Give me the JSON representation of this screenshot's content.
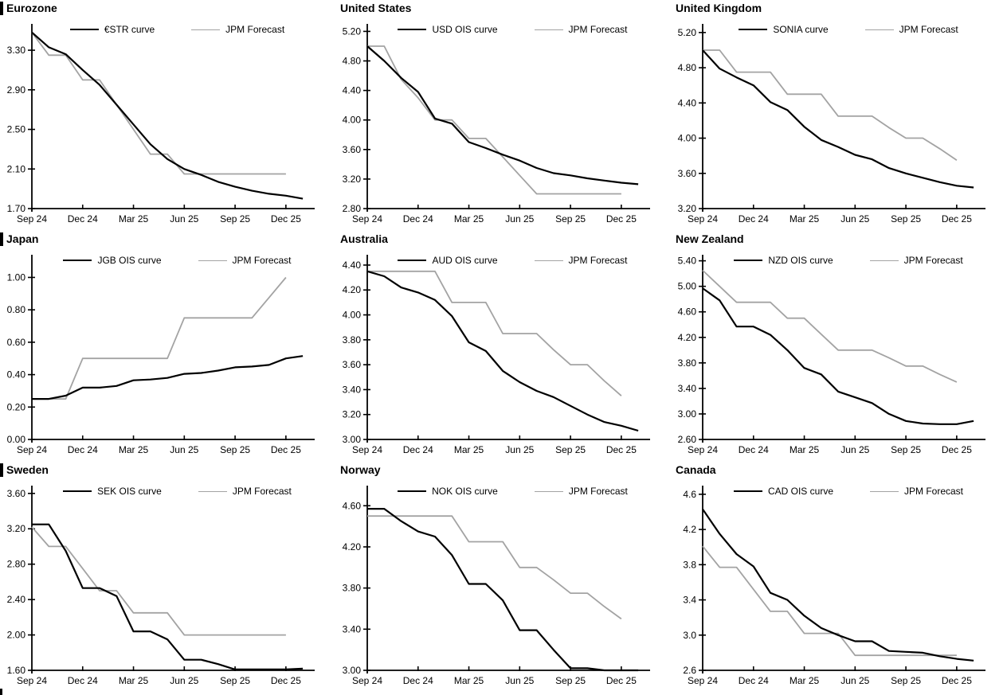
{
  "page": {
    "background": "#ffffff"
  },
  "chart_meta": {
    "x_tick_labels": [
      "Sep 24",
      "Dec 24",
      "Mar 25",
      "Jun 25",
      "Sep 25",
      "Dec 25"
    ],
    "x_tick_indices": [
      0,
      3,
      6,
      9,
      12,
      15
    ],
    "x_axis_max_index": 16.7,
    "x_interval": "monthly from Sep 24; curve series extend one extra month past Dec 25",
    "curve_color": "#000000",
    "forecast_color": "#a3a3a3",
    "legend_position": "top-center inside plot"
  },
  "chart_data": [
    {
      "type": "line",
      "title": "Eurozone",
      "section_bar": true,
      "grid": false,
      "y_min": 1.7,
      "y_axis_max": 3.55,
      "y_ticks": [
        1.7,
        2.1,
        2.5,
        2.9,
        3.3
      ],
      "y_tick_labels": [
        "1.70",
        "2.10",
        "2.50",
        "2.90",
        "3.30"
      ],
      "series": [
        {
          "name": "€STR curve",
          "color": "#000000",
          "values": [
            3.48,
            3.33,
            3.26,
            3.1,
            2.95,
            2.75,
            2.55,
            2.35,
            2.2,
            2.1,
            2.04,
            1.97,
            1.92,
            1.88,
            1.85,
            1.83,
            1.8
          ]
        },
        {
          "name": "JPM Forecast",
          "color": "#a3a3a3",
          "values": [
            3.48,
            3.25,
            3.25,
            3.0,
            3.0,
            2.75,
            2.5,
            2.25,
            2.25,
            2.05,
            2.05,
            2.05,
            2.05,
            2.05,
            2.05,
            2.05
          ]
        }
      ]
    },
    {
      "type": "line",
      "title": "United States",
      "section_bar": false,
      "grid": false,
      "y_min": 2.8,
      "y_axis_max": 5.28,
      "y_ticks": [
        2.8,
        3.2,
        3.6,
        4.0,
        4.4,
        4.8,
        5.2
      ],
      "y_tick_labels": [
        "2.80",
        "3.20",
        "3.60",
        "4.00",
        "4.40",
        "4.80",
        "5.20"
      ],
      "series": [
        {
          "name": "USD OIS curve",
          "color": "#000000",
          "values": [
            5.0,
            4.8,
            4.57,
            4.38,
            4.02,
            3.95,
            3.7,
            3.62,
            3.53,
            3.45,
            3.35,
            3.28,
            3.25,
            3.21,
            3.18,
            3.15,
            3.13
          ]
        },
        {
          "name": "JPM Forecast",
          "color": "#a3a3a3",
          "values": [
            5.0,
            5.0,
            4.55,
            4.3,
            4.0,
            4.0,
            3.75,
            3.75,
            3.5,
            3.25,
            3.0,
            3.0,
            3.0,
            3.0,
            3.0,
            3.0
          ]
        }
      ]
    },
    {
      "type": "line",
      "title": "United Kingdom",
      "section_bar": false,
      "grid": false,
      "y_min": 3.2,
      "y_axis_max": 5.28,
      "y_ticks": [
        3.2,
        3.6,
        4.0,
        4.4,
        4.8,
        5.2
      ],
      "y_tick_labels": [
        "3.20",
        "3.60",
        "4.00",
        "4.40",
        "4.80",
        "5.20"
      ],
      "series": [
        {
          "name": "SONIA curve",
          "color": "#000000",
          "values": [
            5.0,
            4.79,
            4.69,
            4.6,
            4.41,
            4.32,
            4.13,
            3.98,
            3.9,
            3.81,
            3.76,
            3.66,
            3.6,
            3.55,
            3.5,
            3.46,
            3.44
          ]
        },
        {
          "name": "JPM Forecast",
          "color": "#a3a3a3",
          "values": [
            5.0,
            5.0,
            4.75,
            4.75,
            4.75,
            4.5,
            4.5,
            4.5,
            4.25,
            4.25,
            4.25,
            4.12,
            4.0,
            4.0,
            3.88,
            3.75
          ]
        }
      ]
    },
    {
      "type": "line",
      "title": "Japan",
      "section_bar": true,
      "grid": false,
      "y_min": 0.0,
      "y_axis_max": 1.13,
      "y_ticks": [
        0.0,
        0.2,
        0.4,
        0.6,
        0.8,
        1.0
      ],
      "y_tick_labels": [
        "0.00",
        "0.20",
        "0.40",
        "0.60",
        "0.80",
        "1.00"
      ],
      "series": [
        {
          "name": "JGB OIS curve",
          "color": "#000000",
          "values": [
            0.25,
            0.25,
            0.27,
            0.32,
            0.32,
            0.33,
            0.365,
            0.37,
            0.38,
            0.405,
            0.41,
            0.425,
            0.445,
            0.45,
            0.46,
            0.5,
            0.515
          ]
        },
        {
          "name": "JPM Forecast",
          "color": "#a3a3a3",
          "values": [
            0.25,
            0.25,
            0.25,
            0.5,
            0.5,
            0.5,
            0.5,
            0.5,
            0.5,
            0.75,
            0.75,
            0.75,
            0.75,
            0.75,
            0.875,
            1.0
          ]
        }
      ]
    },
    {
      "type": "line",
      "title": "Australia",
      "section_bar": false,
      "grid": false,
      "y_min": 3.0,
      "y_axis_max": 4.47,
      "y_ticks": [
        3.0,
        3.2,
        3.4,
        3.6,
        3.8,
        4.0,
        4.2,
        4.4
      ],
      "y_tick_labels": [
        "3.00",
        "3.20",
        "3.40",
        "3.60",
        "3.80",
        "4.00",
        "4.20",
        "4.40"
      ],
      "series": [
        {
          "name": "AUD OIS curve",
          "color": "#000000",
          "values": [
            4.35,
            4.31,
            4.22,
            4.18,
            4.12,
            3.99,
            3.78,
            3.71,
            3.55,
            3.46,
            3.39,
            3.34,
            3.27,
            3.2,
            3.14,
            3.11,
            3.07
          ]
        },
        {
          "name": "JPM Forecast",
          "color": "#a3a3a3",
          "values": [
            4.35,
            4.35,
            4.35,
            4.35,
            4.35,
            4.1,
            4.1,
            4.1,
            3.85,
            3.85,
            3.85,
            3.72,
            3.6,
            3.6,
            3.47,
            3.35
          ]
        }
      ]
    },
    {
      "type": "line",
      "title": "New Zealand",
      "section_bar": false,
      "grid": false,
      "y_min": 2.6,
      "y_axis_max": 5.47,
      "y_ticks": [
        2.6,
        3.0,
        3.4,
        3.8,
        4.2,
        4.6,
        5.0,
        5.4
      ],
      "y_tick_labels": [
        "2.60",
        "3.00",
        "3.40",
        "3.80",
        "4.20",
        "4.60",
        "5.00",
        "5.40"
      ],
      "series": [
        {
          "name": "NZD OIS curve",
          "color": "#000000",
          "values": [
            4.97,
            4.78,
            4.37,
            4.37,
            4.24,
            4.0,
            3.72,
            3.62,
            3.35,
            3.26,
            3.17,
            3.0,
            2.89,
            2.85,
            2.84,
            2.84,
            2.89
          ]
        },
        {
          "name": "JPM Forecast",
          "color": "#a3a3a3",
          "values": [
            5.25,
            5.0,
            4.75,
            4.75,
            4.75,
            4.5,
            4.5,
            4.25,
            4.0,
            4.0,
            4.0,
            3.88,
            3.75,
            3.75,
            3.62,
            3.5
          ]
        }
      ]
    },
    {
      "type": "line",
      "title": "Sweden",
      "section_bar": true,
      "grid": false,
      "y_min": 1.6,
      "y_axis_max": 3.67,
      "y_ticks": [
        1.6,
        2.0,
        2.4,
        2.8,
        3.2,
        3.6
      ],
      "y_tick_labels": [
        "1.60",
        "2.00",
        "2.40",
        "2.80",
        "3.20",
        "3.60"
      ],
      "series": [
        {
          "name": "SEK OIS curve",
          "color": "#000000",
          "values": [
            3.25,
            3.25,
            2.95,
            2.53,
            2.53,
            2.44,
            2.04,
            2.04,
            1.95,
            1.72,
            1.72,
            1.67,
            1.61,
            1.61,
            1.61,
            1.61,
            1.62
          ]
        },
        {
          "name": "JPM Forecast",
          "color": "#a3a3a3",
          "values": [
            3.22,
            3.0,
            3.0,
            2.75,
            2.5,
            2.5,
            2.25,
            2.25,
            2.25,
            2.0,
            2.0,
            2.0,
            2.0,
            2.0,
            2.0,
            2.0
          ]
        }
      ]
    },
    {
      "type": "line",
      "title": "Norway",
      "section_bar": false,
      "grid": false,
      "y_min": 3.0,
      "y_axis_max": 4.78,
      "y_ticks": [
        3.0,
        3.4,
        3.8,
        4.2,
        4.6
      ],
      "y_tick_labels": [
        "3.00",
        "3.40",
        "3.80",
        "4.20",
        "4.60"
      ],
      "series": [
        {
          "name": "NOK OIS curve",
          "color": "#000000",
          "values": [
            4.57,
            4.57,
            4.45,
            4.35,
            4.3,
            4.12,
            3.84,
            3.84,
            3.68,
            3.39,
            3.39,
            3.2,
            3.02,
            3.02,
            3.0,
            3.0,
            3.0
          ]
        },
        {
          "name": "JPM Forecast",
          "color": "#a3a3a3",
          "values": [
            4.5,
            4.5,
            4.5,
            4.5,
            4.5,
            4.5,
            4.25,
            4.25,
            4.25,
            4.0,
            4.0,
            3.88,
            3.75,
            3.75,
            3.62,
            3.5
          ]
        }
      ]
    },
    {
      "type": "line",
      "title": "Canada",
      "section_bar": false,
      "grid": false,
      "y_min": 2.6,
      "y_axis_max": 4.68,
      "y_ticks": [
        2.6,
        3.0,
        3.4,
        3.8,
        4.2,
        4.6
      ],
      "y_tick_labels": [
        "2.6",
        "3.0",
        "3.4",
        "3.8",
        "4.2",
        "4.6"
      ],
      "series": [
        {
          "name": "CAD OIS curve",
          "color": "#000000",
          "values": [
            4.43,
            4.15,
            3.92,
            3.78,
            3.48,
            3.4,
            3.22,
            3.08,
            3.0,
            2.93,
            2.93,
            2.82,
            2.81,
            2.8,
            2.76,
            2.73,
            2.71
          ]
        },
        {
          "name": "JPM Forecast",
          "color": "#a3a3a3",
          "values": [
            4.01,
            3.77,
            3.77,
            3.52,
            3.27,
            3.27,
            3.02,
            3.02,
            3.02,
            2.77,
            2.77,
            2.77,
            2.77,
            2.77,
            2.77,
            2.77
          ]
        }
      ]
    }
  ]
}
